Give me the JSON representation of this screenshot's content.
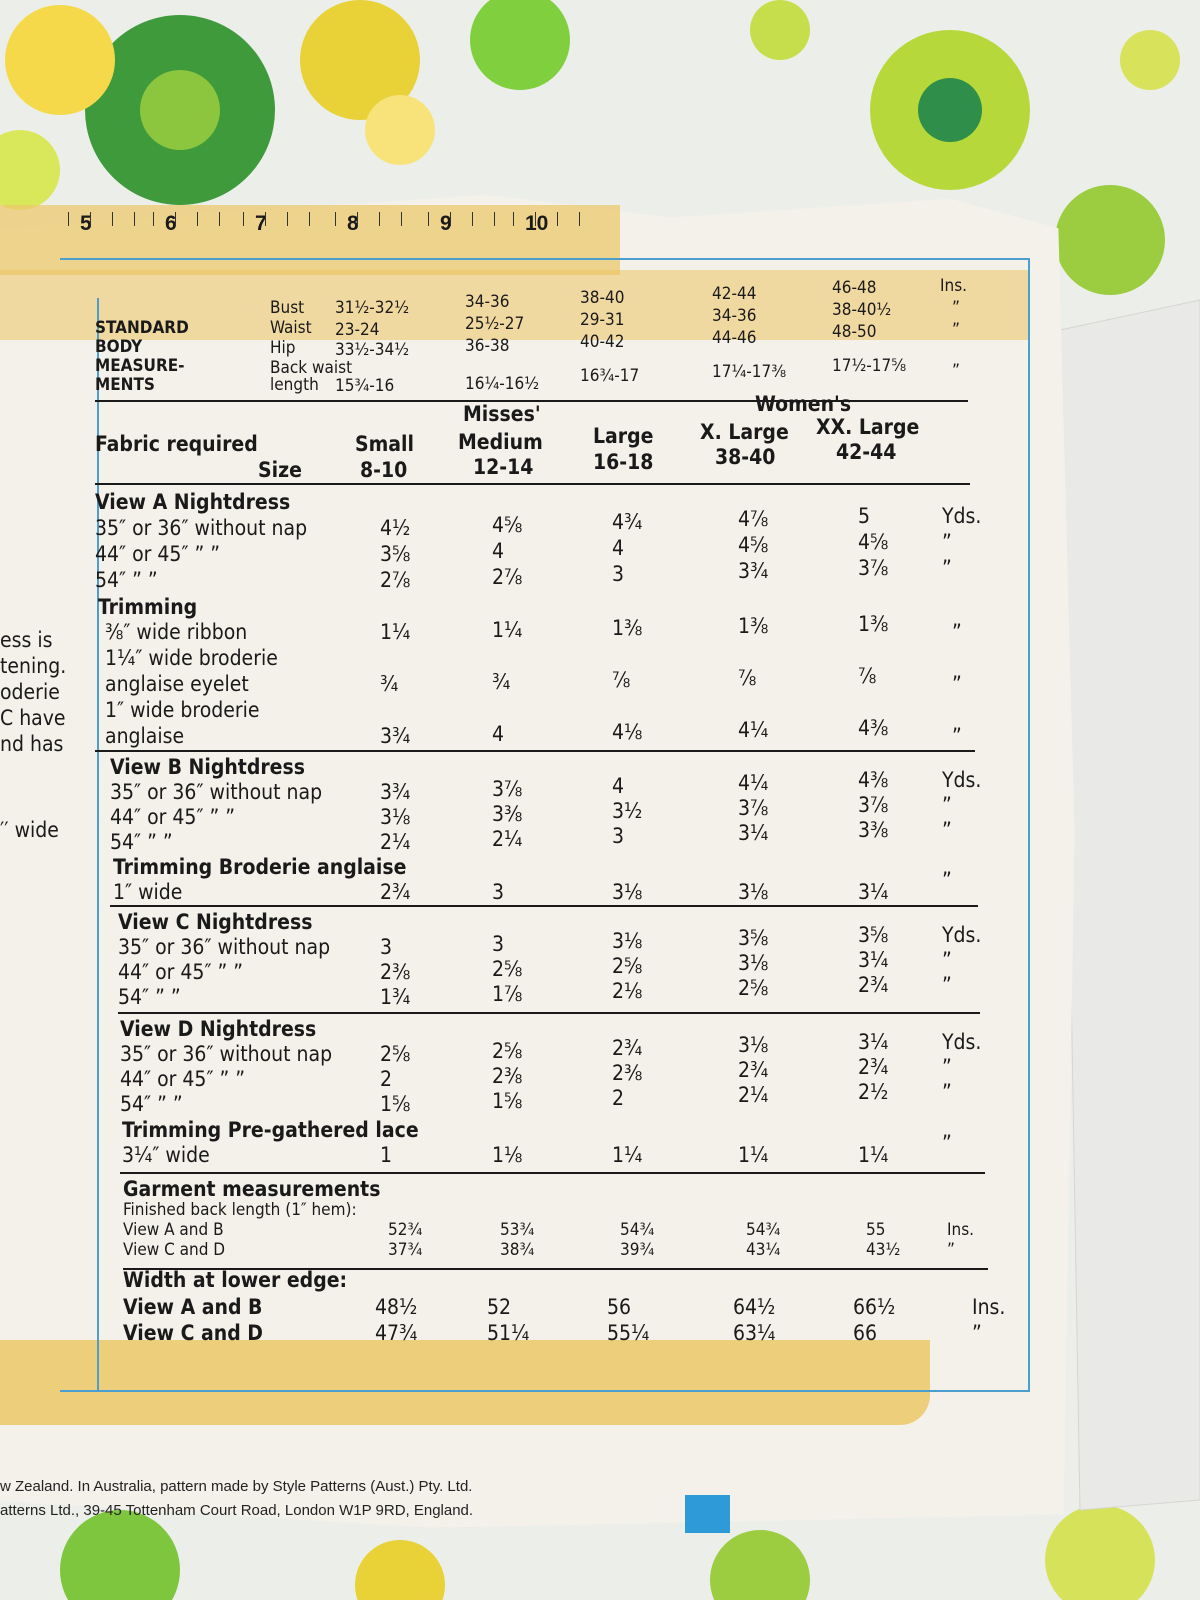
{
  "ruler": [
    "5",
    "6",
    "7",
    "8",
    "9",
    "10"
  ],
  "left_fragments": [
    "ess is",
    "tening.",
    "oderie",
    "C have",
    "nd has",
    "′′ wide"
  ],
  "body_measurements": {
    "label": [
      "STANDARD",
      "BODY",
      "MEASURE-",
      "MENTS"
    ],
    "rows": [
      {
        "name": "Bust",
        "values": [
          "31½-32½",
          "34-36",
          "38-40",
          "42-44",
          "46-48"
        ],
        "unit": "Ins."
      },
      {
        "name": "Waist",
        "values": [
          "23-24",
          "25½-27",
          "29-31",
          "34-36",
          "38-40½"
        ],
        "unit": "”"
      },
      {
        "name": "Hip",
        "values": [
          "33½-34½",
          "36-38",
          "40-42",
          "44-46",
          "48-50"
        ],
        "unit": "”"
      },
      {
        "name": "Back waist",
        "values": [],
        "unit": ""
      },
      {
        "name": "length",
        "values": [
          "15¾-16",
          "16¼-16½",
          "16¾-17",
          "17¼-17⅜",
          "17½-17⅝"
        ],
        "unit": "”"
      }
    ]
  },
  "sizes": {
    "fabric_required": "Fabric required",
    "size": "Size",
    "groups": [
      "Misses'",
      "Women's"
    ],
    "cols": [
      [
        "Small",
        "8-10"
      ],
      [
        "Medium",
        "12-14"
      ],
      [
        "Large",
        "16-18"
      ],
      [
        "X. Large",
        "38-40"
      ],
      [
        "XX. Large",
        "42-44"
      ]
    ]
  },
  "view_a": {
    "title": "View A  Nightdress",
    "rows": [
      [
        "35″ or 36″ without nap",
        "4½",
        "4⅝",
        "4¾",
        "4⅞",
        "5",
        "Yds."
      ],
      [
        "44″ or 45″   ”   ”",
        "3⅝",
        "4",
        "4",
        "4⅝",
        "4⅝",
        "”"
      ],
      [
        "54″          ”   ”",
        "2⅞",
        "2⅞",
        "3",
        "3¾",
        "3⅞",
        "”"
      ]
    ],
    "trimming": "Trimming",
    "trim_rows": [
      [
        "⅜″ wide ribbon",
        "1¼",
        "1¼",
        "1⅜",
        "1⅜",
        "1⅜",
        "”"
      ],
      [
        "1¼″ wide broderie",
        "",
        "",
        "",
        "",
        "",
        ""
      ],
      [
        "anglaise eyelet",
        "¾",
        "¾",
        "⅞",
        "⅞",
        "⅞",
        "”"
      ],
      [
        "1″ wide broderie",
        "",
        "",
        "",
        "",
        "",
        ""
      ],
      [
        "anglaise",
        "3¾",
        "4",
        "4⅛",
        "4¼",
        "4⅜",
        "”"
      ]
    ]
  },
  "view_b": {
    "title": "View B  Nightdress",
    "rows": [
      [
        "35″ or 36″ without nap",
        "3¾",
        "3⅞",
        "4",
        "4¼",
        "4⅜",
        "Yds."
      ],
      [
        "44″ or 45″   ”   ”",
        "3⅛",
        "3⅜",
        "3½",
        "3⅞",
        "3⅞",
        "”"
      ],
      [
        "54″        ”   ”",
        "2¼",
        "2¼",
        "3",
        "3¼",
        "3⅜",
        "”"
      ]
    ],
    "trim_title": "Trimming  Broderie anglaise",
    "trim_rows": [
      [
        "1″ wide",
        "2¾",
        "3",
        "3⅛",
        "3⅛",
        "3¼",
        "”"
      ]
    ]
  },
  "view_c": {
    "title": "View C  Nightdress",
    "rows": [
      [
        "35″ or 36″ without nap",
        "3",
        "3",
        "3⅛",
        "3⅝",
        "3⅝",
        "Yds."
      ],
      [
        "44″ or 45″   ”   ”",
        "2⅜",
        "2⅝",
        "2⅝",
        "3⅛",
        "3¼",
        "”"
      ],
      [
        "54″          ”   ”",
        "1¾",
        "1⅞",
        "2⅛",
        "2⅝",
        "2¾",
        "”"
      ]
    ]
  },
  "view_d": {
    "title": "View D  Nightdress",
    "rows": [
      [
        "35″ or 36″ without nap",
        "2⅝",
        "2⅝",
        "2¾",
        "3⅛",
        "3¼",
        "Yds."
      ],
      [
        "44″ or 45″   ”   ”",
        "2",
        "2⅜",
        "2⅜",
        "2¾",
        "2¾",
        "”"
      ],
      [
        "54″          ”   ”",
        "1⅝",
        "1⅝",
        "2",
        "2¼",
        "2½",
        "”"
      ]
    ],
    "trim_title": "Trimming  Pre-gathered lace",
    "trim_rows": [
      [
        "3¼″ wide",
        "1",
        "1⅛",
        "1¼",
        "1¼",
        "1¼",
        "”"
      ]
    ]
  },
  "garment": {
    "title": "Garment measurements",
    "sub": "Finished back length (1″ hem):",
    "rows": [
      [
        "View A and B",
        "52¾",
        "53¾",
        "54¾",
        "54¾",
        "55",
        "Ins."
      ],
      [
        "View C and D",
        "37¾",
        "38¾",
        "39¾",
        "43¼",
        "43½",
        "”"
      ]
    ]
  },
  "width": {
    "title": "Width at lower edge:",
    "rows": [
      [
        "View A and B",
        "48½",
        "52",
        "56",
        "64½",
        "66½",
        "Ins."
      ],
      [
        "View C and D",
        "47¾",
        "51¼",
        "55¼",
        "63¼",
        "66",
        "”"
      ]
    ]
  },
  "footer": [
    "w Zealand. In Australia, pattern made by Style Patterns (Aust.) Pty. Ltd.",
    "atterns Ltd., 39-45 Tottenham Court Road, London W1P 9RD, England."
  ]
}
